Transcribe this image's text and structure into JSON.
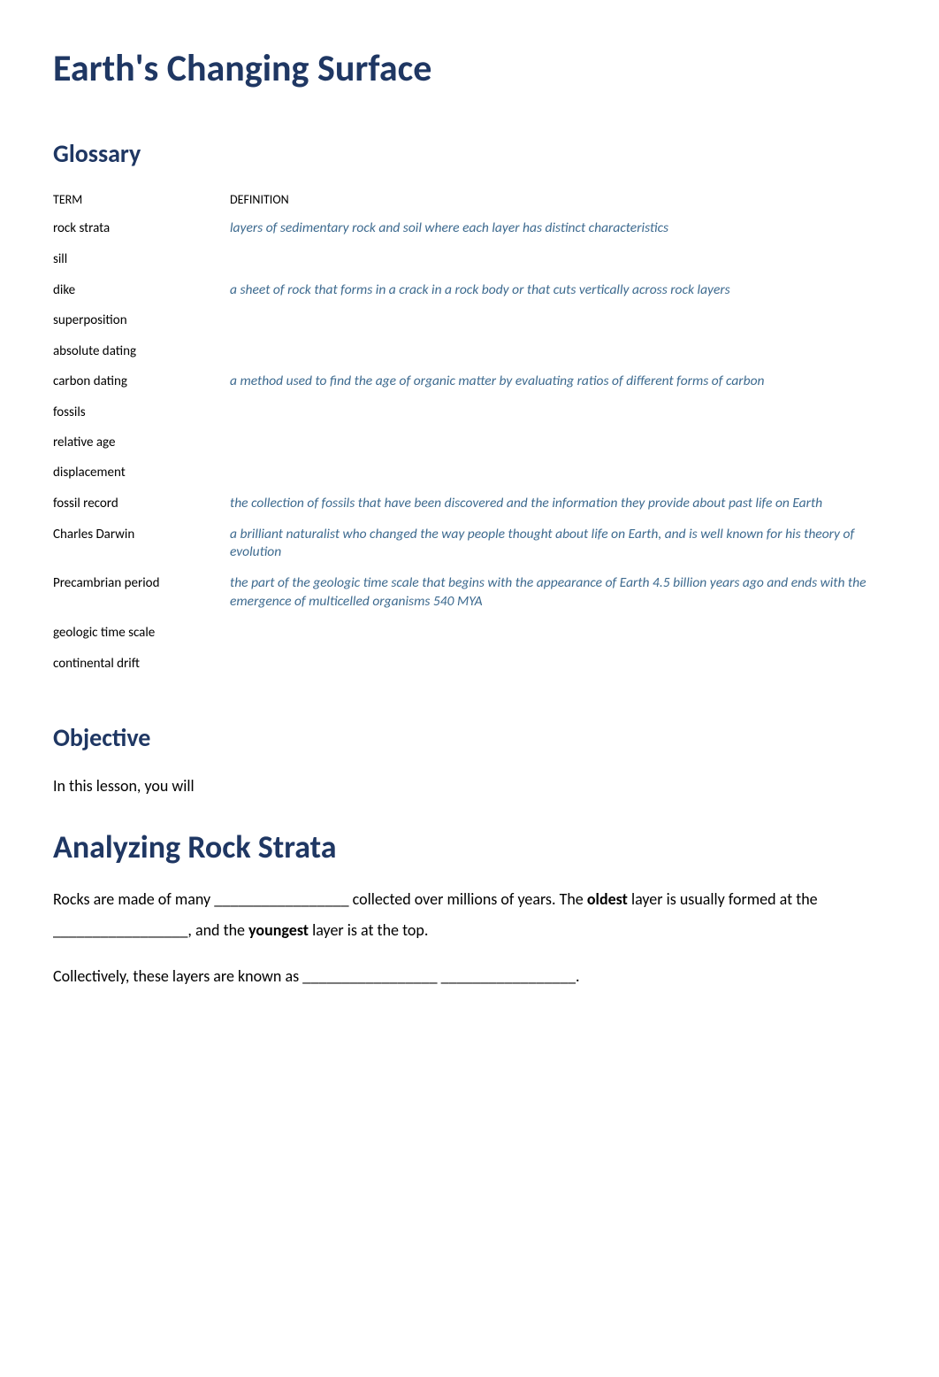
{
  "title": "Earth's Changing Surface",
  "glossary": {
    "heading": "Glossary",
    "columns": {
      "term": "TERM",
      "definition": "DEFINITION"
    },
    "rows": [
      {
        "term": "rock strata",
        "definition": "layers of sedimentary rock and soil where each layer has distinct characteristics"
      },
      {
        "term": "sill",
        "definition": ""
      },
      {
        "term": "dike",
        "definition": "a sheet of rock that forms in a crack in a rock body or that cuts vertically across rock layers"
      },
      {
        "term": "superposition",
        "definition": ""
      },
      {
        "term": "absolute dating",
        "definition": ""
      },
      {
        "term": "carbon dating",
        "definition": "a method used to find the age of organic matter by evaluating ratios of different forms of carbon"
      },
      {
        "term": "fossils",
        "definition": ""
      },
      {
        "term": "relative age",
        "definition": ""
      },
      {
        "term": "displacement",
        "definition": ""
      },
      {
        "term": "fossil record",
        "definition": "the collection of fossils that have been discovered and the information they provide about past life on Earth"
      },
      {
        "term": "Charles Darwin",
        "definition": "a brilliant naturalist who changed the way people thought about life on Earth, and is well known for his theory of evolution"
      },
      {
        "term": "Precambrian period",
        "definition": "the part of the geologic time scale that begins with the appearance of Earth 4.5 billion years ago and ends with the emergence of multicelled organisms 540 MYA"
      },
      {
        "term": "geologic time scale",
        "definition": ""
      },
      {
        "term": "continental drift",
        "definition": ""
      }
    ]
  },
  "objective": {
    "heading": "Objective",
    "text": "In this lesson, you will"
  },
  "strata": {
    "heading": "Analyzing Rock Strata",
    "p1_a": "Rocks are made of many _________________ collected over millions of years. The ",
    "p1_bold1": "oldest",
    "p1_b": " layer is usually formed at the _________________, and the ",
    "p1_bold2": "youngest",
    "p1_c": " layer is at the top.",
    "p2": "Collectively, these layers are known as _________________ _________________."
  },
  "colors": {
    "heading": "#1f3763",
    "definition": "#3d6a8f",
    "text": "#000000",
    "background": "#ffffff"
  },
  "typography": {
    "title_fontsize": 42,
    "section_fontsize": 28,
    "subtitle_fontsize": 36,
    "body_fontsize": 18,
    "table_fontsize": 15,
    "font_family": "Calibri"
  }
}
